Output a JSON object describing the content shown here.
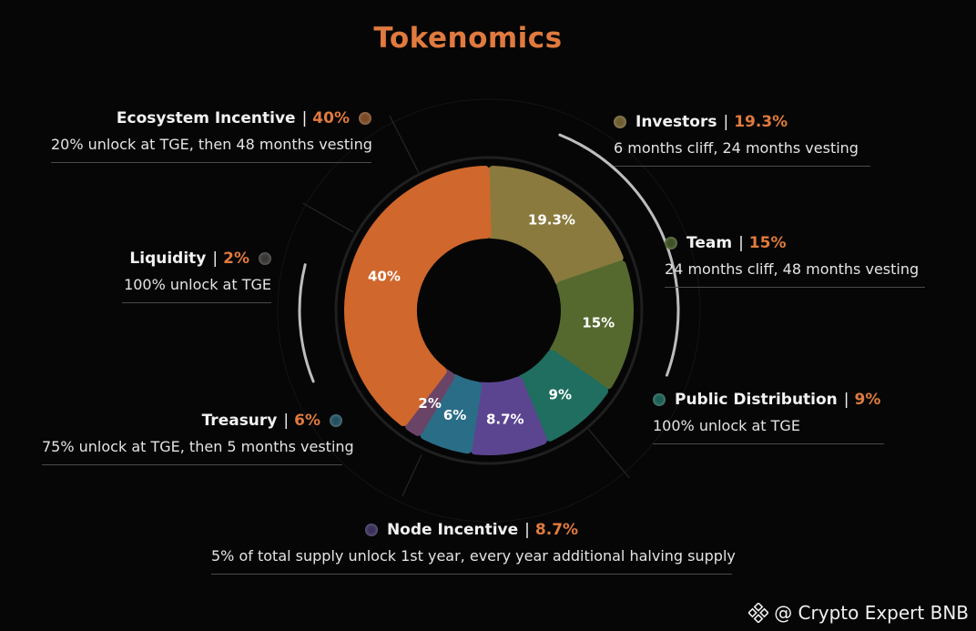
{
  "title": "Tokenomics",
  "watermark": "@ Crypto Expert BNB",
  "chart_data": {
    "type": "pie",
    "title": "Tokenomics",
    "categories": [
      "Investors",
      "Team",
      "Public Distribution",
      "Node Incentive",
      "Treasury",
      "Liquidity",
      "Ecosystem Incentive"
    ],
    "values": [
      19.3,
      15,
      9,
      8.7,
      6,
      2,
      40
    ],
    "value_labels": [
      "19.3%",
      "15%",
      "9%",
      "8.7%",
      "6%",
      "2%",
      "40%"
    ],
    "colors": [
      "#8a7a3e",
      "#55692e",
      "#1f6e60",
      "#5b4590",
      "#2a6d86",
      "#6a4466",
      "#d0672c"
    ]
  },
  "legend": [
    {
      "key": "ecosystem",
      "name": "Ecosystem Incentive",
      "pct": "40%",
      "desc": "20% unlock at TGE, then 48 months vesting",
      "color": "#7a4a26",
      "dot_icon": "orange-dot-icon"
    },
    {
      "key": "liquidity",
      "name": "Liquidity",
      "pct": "2%",
      "desc": "100% unlock at TGE",
      "color": "#3a3535",
      "dot_icon": "gray-dot-icon"
    },
    {
      "key": "treasury",
      "name": "Treasury",
      "pct": "6%",
      "desc": "75% unlock at TGE, then 5 months vesting",
      "color": "#23505e",
      "dot_icon": "blue-dot-icon"
    },
    {
      "key": "node",
      "name": "Node Incentive",
      "pct": "8.7%",
      "desc": "5% of total supply unlock 1st year, every year additional halving supply",
      "color": "#3a2f5a",
      "dot_icon": "purple-dot-icon"
    },
    {
      "key": "investors",
      "name": "Investors",
      "pct": "19.3%",
      "desc": "6 months cliff, 24 months vesting",
      "color": "#6e5d2e",
      "dot_icon": "gold-dot-icon"
    },
    {
      "key": "team",
      "name": "Team",
      "pct": "15%",
      "desc": "24 months cliff, 48 months vesting",
      "color": "#3f5225",
      "dot_icon": "green-dot-icon"
    },
    {
      "key": "public",
      "name": "Public Distribution",
      "pct": "9%",
      "desc": "100% unlock at  TGE",
      "color": "#1d5e54",
      "dot_icon": "teal-dot-icon"
    }
  ]
}
